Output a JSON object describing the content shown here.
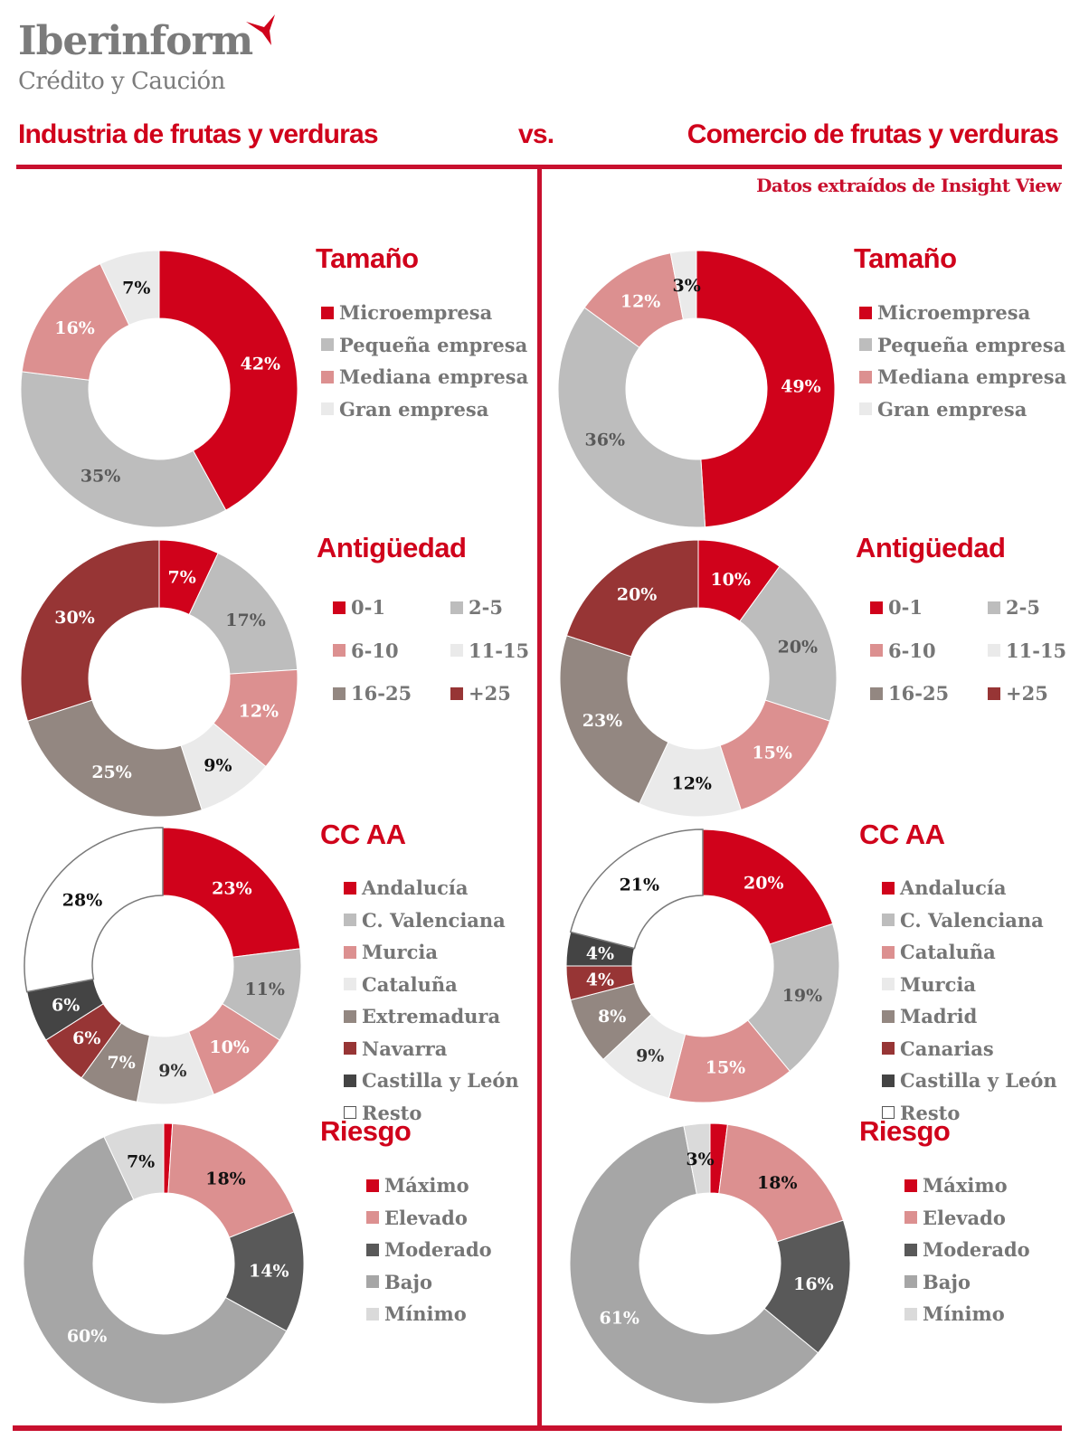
{
  "logo": {
    "name": "Iberinform",
    "tagline": "Crédito y Caución"
  },
  "header": {
    "left_title": "Industria de frutas y verduras",
    "vs": "vs.",
    "right_title": "Comercio de frutas y verduras",
    "source": "Datos extraídos de Insight View"
  },
  "colors": {
    "brand_red": "#d0021b",
    "light_gray": "#bdbdbd",
    "pink": "#dc9090",
    "very_light_gray": "#eaeaea",
    "taupe": "#938781",
    "dark_red": "#973535",
    "charcoal": "#444444",
    "white": "#ffffff",
    "dark_gray": "#595959",
    "mid_gray": "#a6a6a6",
    "min_gray": "#dadada"
  },
  "chart_data": [
    {
      "type": "pie",
      "variant": "donut",
      "panel": "left",
      "title": "Tamaño",
      "categories": [
        "Microempresa",
        "Pequeña empresa",
        "Mediana empresa",
        "Gran empresa"
      ],
      "values": [
        42,
        35,
        16,
        7
      ],
      "labels": [
        "42%",
        "35%",
        "16%",
        "7%"
      ],
      "colors": [
        "#d0021b",
        "#bdbdbd",
        "#dc9090",
        "#eaeaea"
      ],
      "label_colors": [
        "#ffffff",
        "#595959",
        "#ffffff",
        "#111111"
      ],
      "legend_layout": "list"
    },
    {
      "type": "pie",
      "variant": "donut",
      "panel": "right",
      "title": "Tamaño",
      "categories": [
        "Microempresa",
        "Pequeña empresa",
        "Mediana empresa",
        "Gran empresa"
      ],
      "values": [
        49,
        36,
        12,
        3
      ],
      "labels": [
        "49%",
        "36%",
        "12%",
        "3%"
      ],
      "colors": [
        "#d0021b",
        "#bdbdbd",
        "#dc9090",
        "#eaeaea"
      ],
      "label_colors": [
        "#ffffff",
        "#595959",
        "#ffffff",
        "#111111"
      ],
      "legend_layout": "list"
    },
    {
      "type": "pie",
      "variant": "donut",
      "panel": "left",
      "title": "Antigüedad",
      "categories": [
        "0-1",
        "2-5",
        "6-10",
        "11-15",
        "16-25",
        "+25"
      ],
      "values": [
        7,
        17,
        12,
        9,
        25,
        30
      ],
      "labels": [
        "7%",
        "17%",
        "12%",
        "9%",
        "25%",
        "30%"
      ],
      "colors": [
        "#d0021b",
        "#bdbdbd",
        "#dc9090",
        "#eaeaea",
        "#938781",
        "#973535"
      ],
      "label_colors": [
        "#ffffff",
        "#595959",
        "#ffffff",
        "#111111",
        "#ffffff",
        "#ffffff"
      ],
      "legend_layout": "grid"
    },
    {
      "type": "pie",
      "variant": "donut",
      "panel": "right",
      "title": "Antigüedad",
      "categories": [
        "0-1",
        "2-5",
        "6-10",
        "11-15",
        "16-25",
        "+25"
      ],
      "values": [
        10,
        20,
        15,
        12,
        23,
        20
      ],
      "labels": [
        "10%",
        "20%",
        "15%",
        "12%",
        "23%",
        "20%"
      ],
      "colors": [
        "#d0021b",
        "#bdbdbd",
        "#dc9090",
        "#eaeaea",
        "#938781",
        "#973535"
      ],
      "label_colors": [
        "#ffffff",
        "#595959",
        "#ffffff",
        "#111111",
        "#ffffff",
        "#ffffff"
      ],
      "legend_layout": "grid"
    },
    {
      "type": "pie",
      "variant": "donut",
      "panel": "left",
      "title": "CC AA",
      "categories": [
        "Andalucía",
        "C. Valenciana",
        "Murcia",
        "Cataluña",
        "Extremadura",
        "Navarra",
        "Castilla y León",
        "Resto"
      ],
      "values": [
        23,
        11,
        10,
        9,
        7,
        6,
        6,
        28
      ],
      "labels": [
        "23%",
        "11%",
        "10%",
        "9%",
        "7%",
        "6%",
        "6%",
        "28%"
      ],
      "colors": [
        "#d0021b",
        "#bdbdbd",
        "#dc9090",
        "#eaeaea",
        "#938781",
        "#973535",
        "#444444",
        "#ffffff"
      ],
      "label_colors": [
        "#ffffff",
        "#595959",
        "#ffffff",
        "#333333",
        "#ffffff",
        "#ffffff",
        "#ffffff",
        "#111111"
      ],
      "legend_layout": "list"
    },
    {
      "type": "pie",
      "variant": "donut",
      "panel": "right",
      "title": "CC AA",
      "categories": [
        "Andalucía",
        "C. Valenciana",
        "Cataluña",
        "Murcia",
        "Madrid",
        "Canarias",
        "Castilla y León",
        "Resto"
      ],
      "values": [
        20,
        19,
        15,
        9,
        8,
        4,
        4,
        21
      ],
      "labels": [
        "20%",
        "19%",
        "15%",
        "9%",
        "8%",
        "4%",
        "4%",
        "21%"
      ],
      "colors": [
        "#d0021b",
        "#bdbdbd",
        "#dc9090",
        "#eaeaea",
        "#938781",
        "#973535",
        "#444444",
        "#ffffff"
      ],
      "label_colors": [
        "#ffffff",
        "#595959",
        "#ffffff",
        "#333333",
        "#ffffff",
        "#ffffff",
        "#ffffff",
        "#111111"
      ],
      "legend_layout": "list"
    },
    {
      "type": "pie",
      "variant": "donut",
      "panel": "left",
      "title": "Riesgo",
      "categories": [
        "Máximo",
        "Elevado",
        "Moderado",
        "Bajo",
        "Mínimo"
      ],
      "values": [
        1,
        18,
        14,
        60,
        7
      ],
      "labels": [
        "",
        "18%",
        "14%",
        "60%",
        "7%"
      ],
      "colors": [
        "#d0021b",
        "#dc9090",
        "#595959",
        "#a6a6a6",
        "#dadada"
      ],
      "label_colors": [
        "#ffffff",
        "#111111",
        "#ffffff",
        "#ffffff",
        "#111111"
      ],
      "legend_layout": "list"
    },
    {
      "type": "pie",
      "variant": "donut",
      "panel": "right",
      "title": "Riesgo",
      "categories": [
        "Máximo",
        "Elevado",
        "Moderado",
        "Bajo",
        "Mínimo"
      ],
      "values": [
        2,
        18,
        16,
        61,
        3
      ],
      "labels": [
        "",
        "18%",
        "16%",
        "61%",
        "3%"
      ],
      "colors": [
        "#d0021b",
        "#dc9090",
        "#595959",
        "#a6a6a6",
        "#dadada"
      ],
      "label_colors": [
        "#ffffff",
        "#111111",
        "#ffffff",
        "#ffffff",
        "#111111"
      ],
      "legend_layout": "list"
    }
  ]
}
